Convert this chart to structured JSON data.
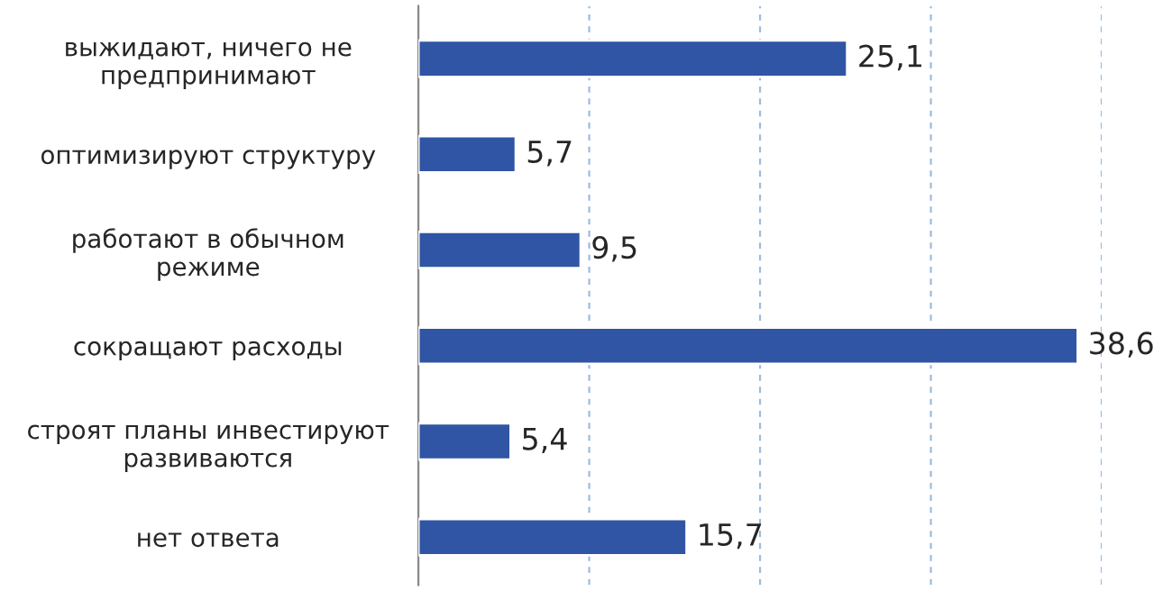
{
  "chart_data": {
    "type": "bar",
    "orientation": "horizontal",
    "categories": [
      "выжидают, ничего не\nпредпринимают",
      "оптимизируют структуру",
      "работают в обычном\nрежиме",
      "сокращают расходы",
      "строят планы инвестируют\nразвиваются",
      "нет ответа"
    ],
    "values": [
      25.1,
      5.7,
      9.5,
      38.6,
      5.4,
      15.7
    ],
    "value_labels": [
      "25,1",
      "5,7",
      "9,5",
      "38,6",
      "5,4",
      "15,7"
    ],
    "color": "#2f55a4",
    "xlim": [
      0,
      40
    ],
    "xticks": [
      {
        "value": 10,
        "label": null
      },
      {
        "value": 20,
        "label": null
      },
      {
        "value": 30,
        "label": null
      },
      {
        "value": 40,
        "label": null
      }
    ],
    "grid": "x"
  }
}
